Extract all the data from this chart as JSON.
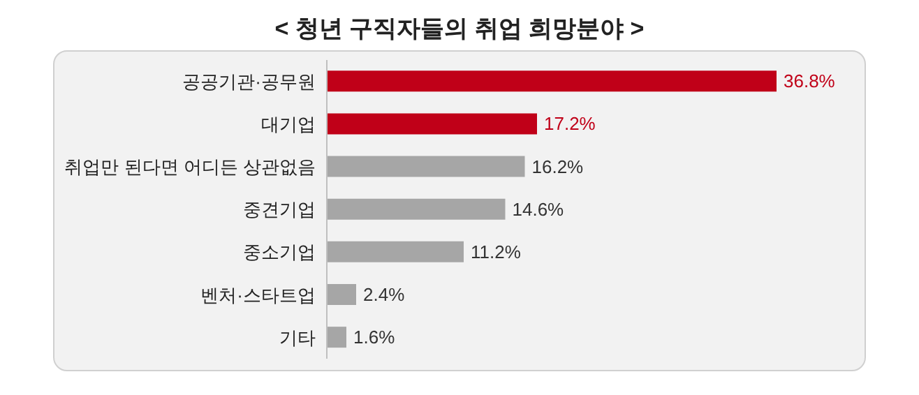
{
  "chart_data": {
    "type": "bar",
    "orientation": "horizontal",
    "title": "< 청년 구직자들의 취업 희망분야 >",
    "categories": [
      "공공기관·공무원",
      "대기업",
      "취업만 된다면 어디든 상관없음",
      "중견기업",
      "중소기업",
      "벤처·스타트업",
      "기타"
    ],
    "values": [
      36.8,
      17.2,
      16.2,
      14.6,
      11.2,
      2.4,
      1.6
    ],
    "colors": [
      "#c00018",
      "#c00018",
      "#a6a6a6",
      "#a6a6a6",
      "#a6a6a6",
      "#a6a6a6",
      "#a6a6a6"
    ],
    "value_labels": [
      "36.8%",
      "17.2%",
      "16.2%",
      "14.6%",
      "11.2%",
      "2.4%",
      "1.6%"
    ],
    "tick_labels": "y"
  }
}
